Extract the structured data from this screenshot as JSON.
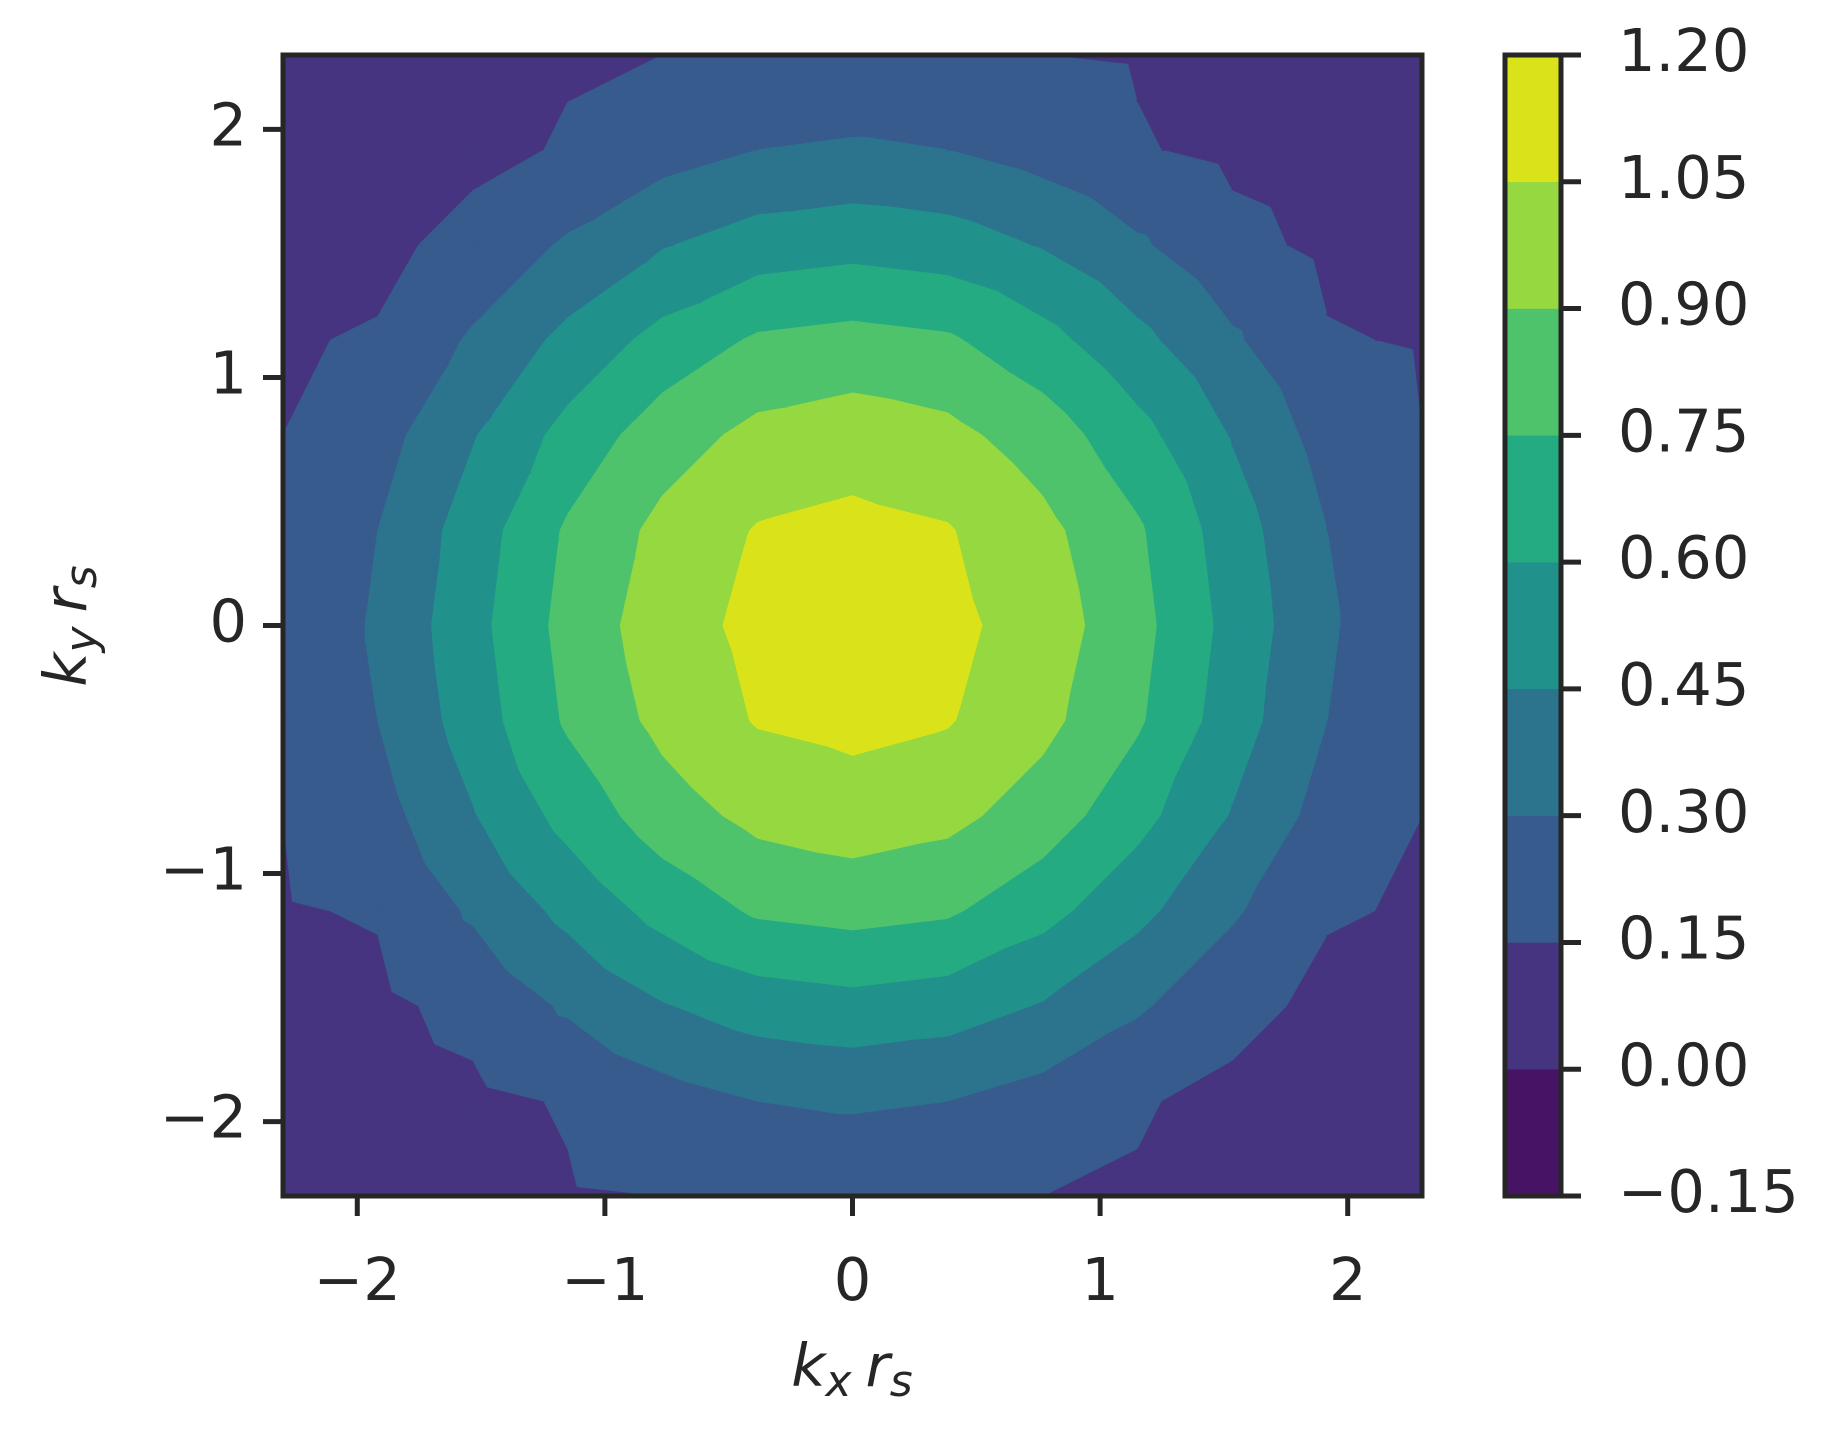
{
  "chart_data": {
    "type": "contourf",
    "xlabel": [
      "k",
      "x",
      "r",
      "s"
    ],
    "ylabel": [
      "k",
      "y",
      "r",
      "s"
    ],
    "x": [
      -2.3,
      -1.917,
      -1.533,
      -1.15,
      -0.767,
      -0.383,
      0,
      0.383,
      0.767,
      1.15,
      1.533,
      1.917,
      2.3
    ],
    "y": [
      -2.3,
      -1.917,
      -1.533,
      -1.15,
      -0.767,
      -0.383,
      0,
      0.383,
      0.767,
      1.15,
      1.533,
      1.917,
      2.3
    ],
    "z": [
      [
        0.03,
        0.06,
        0.1,
        0.14,
        0.15,
        0.17,
        0.17,
        0.17,
        0.15,
        0.14,
        0.1,
        0.06,
        0.03
      ],
      [
        0.06,
        0.09,
        0.12,
        0.16,
        0.24,
        0.3,
        0.32,
        0.3,
        0.24,
        0.16,
        0.12,
        0.09,
        0.06
      ],
      [
        0.1,
        0.12,
        0.19,
        0.32,
        0.44,
        0.52,
        0.55,
        0.52,
        0.44,
        0.32,
        0.19,
        0.12,
        0.1
      ],
      [
        0.14,
        0.16,
        0.32,
        0.49,
        0.65,
        0.77,
        0.8,
        0.77,
        0.65,
        0.49,
        0.32,
        0.16,
        0.14
      ],
      [
        0.15,
        0.24,
        0.44,
        0.65,
        0.83,
        0.94,
        0.98,
        0.94,
        0.83,
        0.65,
        0.44,
        0.24,
        0.15
      ],
      [
        0.17,
        0.3,
        0.52,
        0.77,
        0.94,
        1.06,
        1.09,
        1.06,
        0.94,
        0.77,
        0.52,
        0.3,
        0.17
      ],
      [
        0.17,
        0.32,
        0.55,
        0.8,
        0.98,
        1.09,
        1.15,
        1.09,
        0.98,
        0.8,
        0.55,
        0.32,
        0.17
      ],
      [
        0.17,
        0.3,
        0.52,
        0.77,
        0.94,
        1.06,
        1.09,
        1.06,
        0.94,
        0.77,
        0.52,
        0.3,
        0.17
      ],
      [
        0.15,
        0.24,
        0.44,
        0.65,
        0.83,
        0.94,
        0.98,
        0.94,
        0.83,
        0.65,
        0.44,
        0.24,
        0.15
      ],
      [
        0.14,
        0.16,
        0.32,
        0.49,
        0.65,
        0.77,
        0.8,
        0.77,
        0.65,
        0.49,
        0.32,
        0.16,
        0.14
      ],
      [
        0.1,
        0.12,
        0.19,
        0.32,
        0.44,
        0.52,
        0.55,
        0.52,
        0.44,
        0.32,
        0.19,
        0.12,
        0.1
      ],
      [
        0.06,
        0.09,
        0.12,
        0.16,
        0.24,
        0.3,
        0.32,
        0.3,
        0.24,
        0.16,
        0.12,
        0.09,
        0.06
      ],
      [
        0.03,
        0.06,
        0.1,
        0.14,
        0.15,
        0.17,
        0.17,
        0.17,
        0.15,
        0.14,
        0.1,
        0.06,
        0.03
      ]
    ],
    "colors": [
      "#471365",
      "#463480",
      "#375b8d",
      "#2c738e",
      "#21918c",
      "#25ab82",
      "#4ec36b",
      "#95d840",
      "#dae319"
    ],
    "xlim": [
      -2.3,
      2.3
    ],
    "ylim": [
      -2.3,
      2.3
    ],
    "xticks": [
      {
        "value": -2,
        "label": "−2"
      },
      {
        "value": -1,
        "label": "−1"
      },
      0,
      1,
      2
    ],
    "yticks": [
      {
        "value": -2,
        "label": "−2"
      },
      {
        "value": -1,
        "label": "−1"
      },
      0,
      1,
      2
    ],
    "cbar_ticks": [
      {
        "value": -0.15,
        "label": "−0.15"
      },
      {
        "value": 0,
        "label": "0.00"
      },
      {
        "value": 0.15,
        "label": "0.15"
      },
      {
        "value": 0.3,
        "label": "0.30"
      },
      {
        "value": 0.45,
        "label": "0.45"
      },
      {
        "value": 0.6,
        "label": "0.60"
      },
      {
        "value": 0.75,
        "label": "0.75"
      },
      {
        "value": 0.9,
        "label": "0.90"
      },
      {
        "value": 1.05,
        "label": "1.05"
      },
      {
        "value": 1.2,
        "label": "1.20"
      }
    ]
  }
}
